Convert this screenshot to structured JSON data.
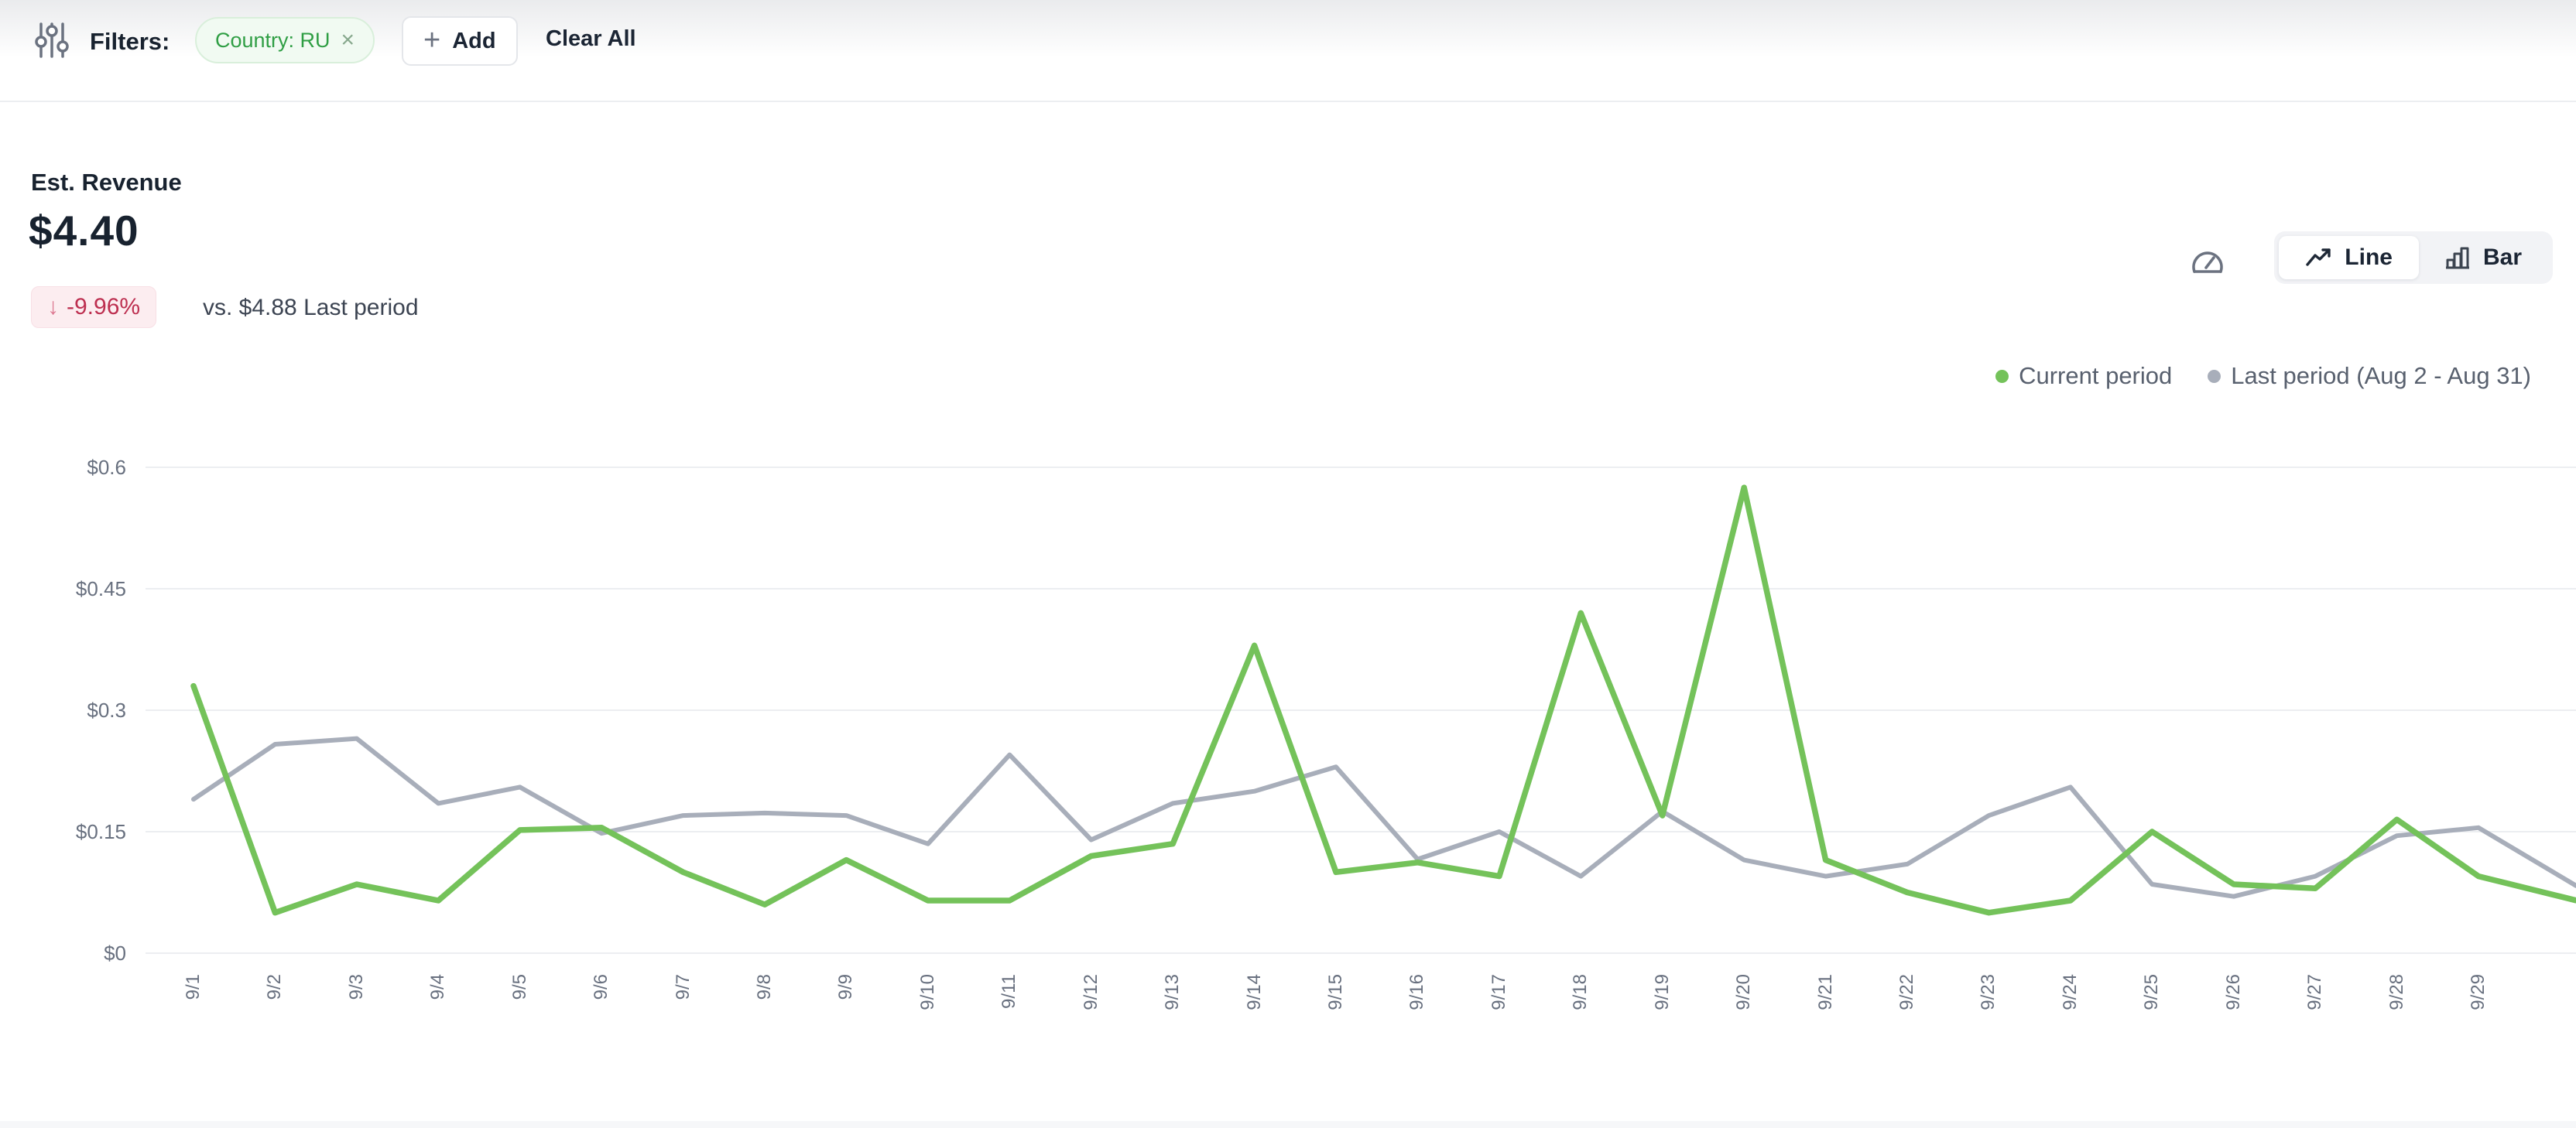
{
  "filters_bar": {
    "label": "Filters:",
    "chip": {
      "label": "Country: RU",
      "remove_glyph": "×"
    },
    "add_button": {
      "label": "Add",
      "plus_glyph": "+"
    },
    "clear_all_label": "Clear All"
  },
  "kpi": {
    "title": "Est. Revenue",
    "value": "$4.40",
    "delta": "-9.96%",
    "delta_direction": "down",
    "delta_arrow_glyph": "↓",
    "comparison": "vs. $4.88 Last period"
  },
  "chart_controls": {
    "gauge_icon": "speedometer",
    "line_button": "Line",
    "bar_button": "Bar",
    "selected": "Line"
  },
  "colors": {
    "current_period": "#74c25a",
    "last_period": "#a8aeba",
    "gridline": "#eceef1",
    "delta_negative_text": "#bd2f50",
    "delta_negative_bg": "#fcedf0",
    "chip_green_text": "#2f9e44"
  },
  "chart_data": {
    "type": "line",
    "title": "Est. Revenue",
    "grid": true,
    "legend_position": "top-right",
    "ylim": [
      0,
      0.6
    ],
    "yticks": [
      {
        "label": "$0",
        "value": 0
      },
      {
        "label": "$0.15",
        "value": 0.15
      },
      {
        "label": "$0.3",
        "value": 0.3
      },
      {
        "label": "$0.45",
        "value": 0.45
      },
      {
        "label": "$0.6",
        "value": 0.6
      }
    ],
    "x": [
      "9/1",
      "9/2",
      "9/3",
      "9/4",
      "9/5",
      "9/6",
      "9/7",
      "9/8",
      "9/9",
      "9/10",
      "9/11",
      "9/12",
      "9/13",
      "9/14",
      "9/15",
      "9/16",
      "9/17",
      "9/18",
      "9/19",
      "9/20",
      "9/21",
      "9/22",
      "9/23",
      "9/24",
      "9/25",
      "9/26",
      "9/27",
      "9/28",
      "9/29",
      ""
    ],
    "series": [
      {
        "name": "Current period",
        "color": "#74c25a",
        "values": [
          0.33,
          0.05,
          0.085,
          0.065,
          0.152,
          0.155,
          0.1,
          0.06,
          0.115,
          0.065,
          0.065,
          0.12,
          0.135,
          0.38,
          0.1,
          0.112,
          0.095,
          0.42,
          0.17,
          0.575,
          0.115,
          0.075,
          0.05,
          0.065,
          0.15,
          0.085,
          0.08,
          0.165,
          0.095,
          0.07
        ]
      },
      {
        "name": "Last period (Aug 2 - Aug 31)",
        "color": "#a8aeba",
        "values": [
          0.19,
          0.258,
          0.265,
          0.185,
          0.205,
          0.148,
          0.17,
          0.173,
          0.17,
          0.135,
          0.245,
          0.14,
          0.185,
          0.2,
          0.23,
          0.116,
          0.15,
          0.095,
          0.175,
          0.115,
          0.095,
          0.11,
          0.17,
          0.205,
          0.085,
          0.07,
          0.095,
          0.145,
          0.155,
          0.095
        ]
      }
    ]
  }
}
